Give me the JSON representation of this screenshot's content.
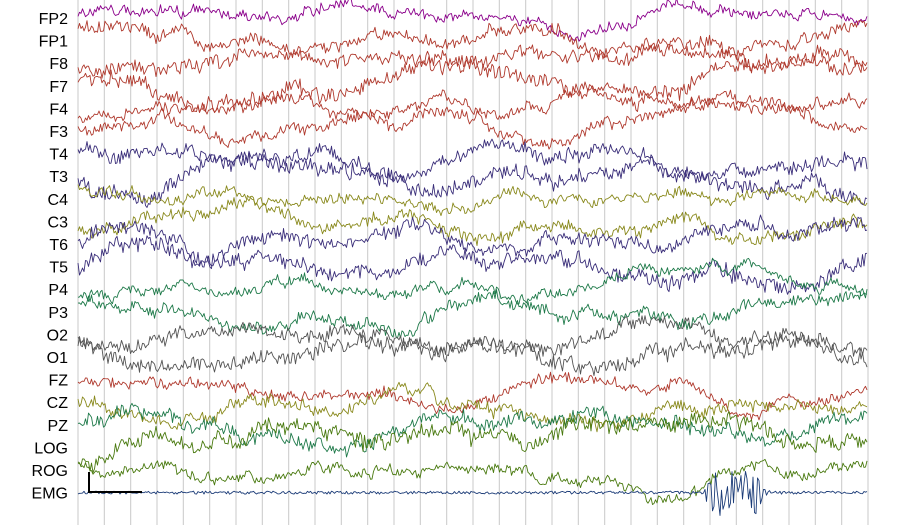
{
  "chart_data": {
    "type": "line",
    "title": "",
    "xlabel": "",
    "ylabel": "",
    "grid": true,
    "vertical_grid_lines": 30,
    "channels": [
      {
        "name": "FP2",
        "color": "#8b008b"
      },
      {
        "name": "FP1",
        "color": "#b03a2e"
      },
      {
        "name": "F8",
        "color": "#b03a2e"
      },
      {
        "name": "F7",
        "color": "#b03a2e"
      },
      {
        "name": "F4",
        "color": "#b03a2e"
      },
      {
        "name": "F3",
        "color": "#b03a2e"
      },
      {
        "name": "T4",
        "color": "#3b2f7a"
      },
      {
        "name": "T3",
        "color": "#3b2f7a"
      },
      {
        "name": "C4",
        "color": "#8a8a1e"
      },
      {
        "name": "C3",
        "color": "#8a8a1e"
      },
      {
        "name": "T6",
        "color": "#3b2f7a"
      },
      {
        "name": "T5",
        "color": "#3b2f7a"
      },
      {
        "name": "P4",
        "color": "#1f7a4a"
      },
      {
        "name": "P3",
        "color": "#1f7a4a"
      },
      {
        "name": "O2",
        "color": "#555555"
      },
      {
        "name": "O1",
        "color": "#555555"
      },
      {
        "name": "FZ",
        "color": "#b03a2e"
      },
      {
        "name": "CZ",
        "color": "#8a8a1e"
      },
      {
        "name": "PZ",
        "color": "#1f7a4a"
      },
      {
        "name": "LOG",
        "color": "#4a7a10"
      },
      {
        "name": "ROG",
        "color": "#4a7a10"
      },
      {
        "name": "EMG",
        "color": "#1c3c78"
      }
    ]
  }
}
